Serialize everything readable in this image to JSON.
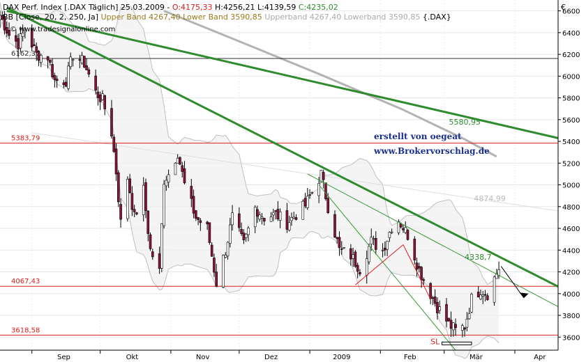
{
  "header": {
    "line1_prefix": "DAX Perf. Index [.DAX  Täglich] 25.03.2009 - ",
    "line1_open": "O:4175,33",
    "line1_high": "H:4256,21",
    "line1_low": "L:4139,59",
    "line1_close": "C:4235,02",
    "line2_prefix": "BB [Close, 20, 2, 250, Ja]",
    "line2_upper": "Upper Band 4267,40",
    "line2_lower": "Lower Band 3590,85",
    "line2_ub_ref": "Upperband 4267,40",
    "line2_lb_ref": "Lowerband 3590,85",
    "line2_ticker": "{.DAX}",
    "watermark": "© www.tradesignalonline.com",
    "currency": "€"
  },
  "credit": {
    "line1": "erstellt von oegeat",
    "line2": "www.Brokervorschlag.de"
  },
  "colors": {
    "candle_up": "#ffffff",
    "candle_down": "#8a1538",
    "candle_outline": "#000000",
    "band": "#bfbfbf",
    "band_fill": "#efefef",
    "trend_green": "#2e8b2e",
    "trend_green_thin": "#3a9a3a",
    "support_red": "#d81e1e",
    "ma250": "#b3b3b3"
  },
  "chart_data": {
    "type": "candlestick",
    "x_axis": {
      "categories": [
        "Sep",
        "Okt",
        "Nov",
        "Dez",
        "2009",
        "Feb",
        "Mär",
        "Apr"
      ],
      "start": "2008-08-18",
      "end": "2009-04-20"
    },
    "y_axis": {
      "ticks": [
        3600,
        3800,
        4000,
        4200,
        4400,
        4600,
        4800,
        5000,
        5200,
        5400,
        5600,
        5800,
        6000,
        6200,
        6400,
        6600
      ],
      "ylim": [
        3480,
        6700
      ],
      "position": "right"
    },
    "horizontal_levels": [
      {
        "value": 6162.37,
        "label": "6162,37",
        "color": "#333333"
      },
      {
        "value": 5383.79,
        "label": "5383,79",
        "color": "#d81e1e"
      },
      {
        "value": 4067.43,
        "label": "4067,43",
        "color": "#d81e1e"
      },
      {
        "value": 3618.58,
        "label": "3618,58",
        "color": "#d81e1e"
      }
    ],
    "annotations": [
      {
        "text": "5580,95",
        "value": 5580.95,
        "color": "#2e8b2e"
      },
      {
        "text": "4874,99",
        "value": 4874.99,
        "color": "#bbbbbb"
      },
      {
        "text": "4338,7",
        "value": 4338.7,
        "color": "#2e8b2e"
      },
      {
        "text": "SL",
        "value": 3560,
        "color": "#d81e1e"
      }
    ],
    "trendlines": [
      {
        "name": "long-downtrend",
        "from": [
          "2008-08-21",
          6600
        ],
        "to": [
          "2009-04-20",
          5430
        ]
      },
      {
        "name": "medium-downtrend",
        "from": [
          "2008-08-21",
          6630
        ],
        "to": [
          "2009-04-20",
          4065
        ]
      },
      {
        "name": "short-downtrend",
        "from": [
          "2008-12-31",
          5100
        ],
        "to": [
          "2009-04-20",
          3880
        ]
      },
      {
        "name": "steep-downtrend",
        "from": [
          "2009-01-05",
          5000
        ],
        "to": [
          "2009-03-06",
          3480
        ]
      }
    ],
    "daily_closes": [
      [
        "2008-08-18",
        6560
      ],
      [
        "2008-08-22",
        6380
      ],
      [
        "2008-08-26",
        6300
      ],
      [
        "2008-08-29",
        6430
      ],
      [
        "2008-09-03",
        6200
      ],
      [
        "2008-09-08",
        6180
      ],
      [
        "2008-09-11",
        5960
      ],
      [
        "2008-09-16",
        5960
      ],
      [
        "2008-09-19",
        6200
      ],
      [
        "2008-09-24",
        6120
      ],
      [
        "2008-09-29",
        5850
      ],
      [
        "2008-10-02",
        5780
      ],
      [
        "2008-10-06",
        5480
      ],
      [
        "2008-10-08",
        5120
      ],
      [
        "2008-10-10",
        4650
      ],
      [
        "2008-10-13",
        5070
      ],
      [
        "2008-10-16",
        4700
      ],
      [
        "2008-10-20",
        4950
      ],
      [
        "2008-10-23",
        4400
      ],
      [
        "2008-10-27",
        4200
      ],
      [
        "2008-10-29",
        5050
      ],
      [
        "2008-10-31",
        5100
      ],
      [
        "2008-11-04",
        5300
      ],
      [
        "2008-11-07",
        5000
      ],
      [
        "2008-11-12",
        4700
      ],
      [
        "2008-11-17",
        4600
      ],
      [
        "2008-11-21",
        4100
      ],
      [
        "2008-11-25",
        4400
      ],
      [
        "2008-11-28",
        4700
      ],
      [
        "2008-12-03",
        4450
      ],
      [
        "2008-12-08",
        4790
      ],
      [
        "2008-12-12",
        4700
      ],
      [
        "2008-12-17",
        4730
      ],
      [
        "2008-12-22",
        4650
      ],
      [
        "2008-12-30",
        4810
      ],
      [
        "2009-01-06",
        5100
      ],
      [
        "2009-01-09",
        4800
      ],
      [
        "2009-01-14",
        4400
      ],
      [
        "2009-01-19",
        4350
      ],
      [
        "2009-01-23",
        4230
      ],
      [
        "2009-01-28",
        4480
      ],
      [
        "2009-02-02",
        4400
      ],
      [
        "2009-02-06",
        4620
      ],
      [
        "2009-02-09",
        4680
      ],
      [
        "2009-02-13",
        4540
      ],
      [
        "2009-02-18",
        4220
      ],
      [
        "2009-02-23",
        4000
      ],
      [
        "2009-02-26",
        3880
      ],
      [
        "2009-03-03",
        3720
      ],
      [
        "2009-03-06",
        3660
      ],
      [
        "2009-03-10",
        3700
      ],
      [
        "2009-03-13",
        3950
      ],
      [
        "2009-03-17",
        4040
      ],
      [
        "2009-03-20",
        4000
      ],
      [
        "2009-03-25",
        4235
      ]
    ]
  }
}
